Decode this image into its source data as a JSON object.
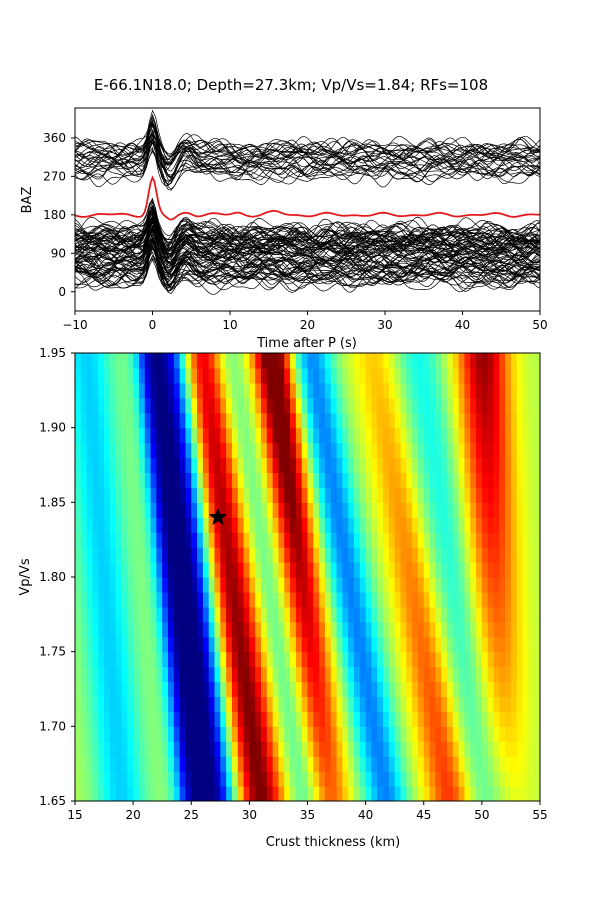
{
  "figure": {
    "title": "E-66.1N18.0; Depth=27.3km; Vp/Vs=1.84; RFs=108"
  },
  "chart_data": [
    {
      "type": "line",
      "panel": "receiver-functions",
      "xlabel": "Time after P (s)",
      "ylabel": "BAZ",
      "xlim": [
        -10,
        50
      ],
      "ylim": [
        -45,
        430
      ],
      "xticks": [
        -10,
        0,
        10,
        20,
        30,
        40,
        50
      ],
      "yticks": [
        0,
        90,
        180,
        270,
        360
      ],
      "trace_count": 108,
      "trace_color": "#000000",
      "stack_color": "#e31a1c",
      "stack_baseline": 180,
      "stack_peak_time": 0,
      "stack_peak_value": 265,
      "baz_groups": [
        {
          "baz_range": [
            20,
            150
          ],
          "share": 0.72
        },
        {
          "baz_range": [
            270,
            340
          ],
          "share": 0.28
        }
      ]
    },
    {
      "type": "heatmap",
      "panel": "h-k-stacking",
      "xlabel": "Crust thickness (km)",
      "ylabel": "Vp/Vs",
      "xlim": [
        15,
        55
      ],
      "ylim": [
        1.65,
        1.95
      ],
      "xticks": [
        15,
        20,
        25,
        30,
        35,
        40,
        45,
        50,
        55
      ],
      "yticks": [
        "1.65",
        "1.70",
        "1.75",
        "1.80",
        "1.85",
        "1.90",
        "1.95"
      ],
      "colormap": "jet",
      "best_fit": {
        "thickness_km": 27.3,
        "vp_vs": 1.84
      },
      "marker": "star"
    }
  ]
}
